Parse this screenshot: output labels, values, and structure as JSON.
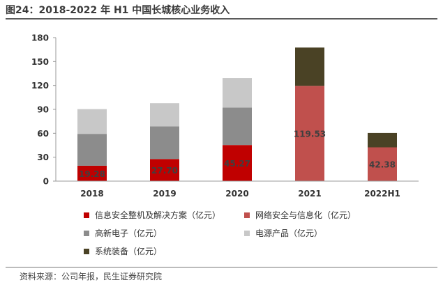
{
  "header": {
    "title": "图24：2018-2022 年 H1 中国长城核心业务收入"
  },
  "source": {
    "text": "资料来源：公司年报，民生证券研究院"
  },
  "colors": {
    "xinxi": "#C00000",
    "wangluo": "#C0504D",
    "gaoxin": "#8C8C8C",
    "dianyuan": "#C8C8C8",
    "xitong": "#4A4225"
  },
  "chart_data": {
    "type": "stacked-bar",
    "title": "图24：2018-2022 年 H1 中国长城核心业务收入",
    "categories": [
      "2018",
      "2019",
      "2020",
      "2021",
      "2022H1"
    ],
    "ylim": [
      0,
      180
    ],
    "yticks": [
      "0",
      "30",
      "60",
      "90",
      "120",
      "150",
      "180"
    ],
    "series": [
      {
        "name": "信息安全整机及解决方案（亿元）",
        "color_key": "xinxi",
        "values": [
          19.28,
          27.7,
          45.27,
          0,
          0
        ],
        "labels": [
          "19.28",
          "27.70",
          "45.27",
          "",
          ""
        ]
      },
      {
        "name": "网络安全与信息化（亿元）",
        "color_key": "wangluo",
        "values": [
          0,
          0,
          0,
          119.53,
          42.38
        ],
        "labels": [
          "",
          "",
          "",
          "119.53",
          "42.38"
        ]
      },
      {
        "name": "高新电子（亿元）",
        "color_key": "gaoxin",
        "values": [
          40,
          41,
          47,
          0,
          0
        ],
        "labels": [
          "",
          "",
          "",
          "",
          ""
        ]
      },
      {
        "name": "电源产品（亿元）",
        "color_key": "dianyuan",
        "values": [
          31,
          29,
          37,
          0,
          0
        ],
        "labels": [
          "",
          "",
          "",
          "",
          ""
        ]
      },
      {
        "name": "系统装备（亿元）",
        "color_key": "xitong",
        "values": [
          0,
          0,
          0,
          48,
          18
        ],
        "labels": [
          "",
          "",
          "",
          "",
          ""
        ]
      }
    ]
  }
}
